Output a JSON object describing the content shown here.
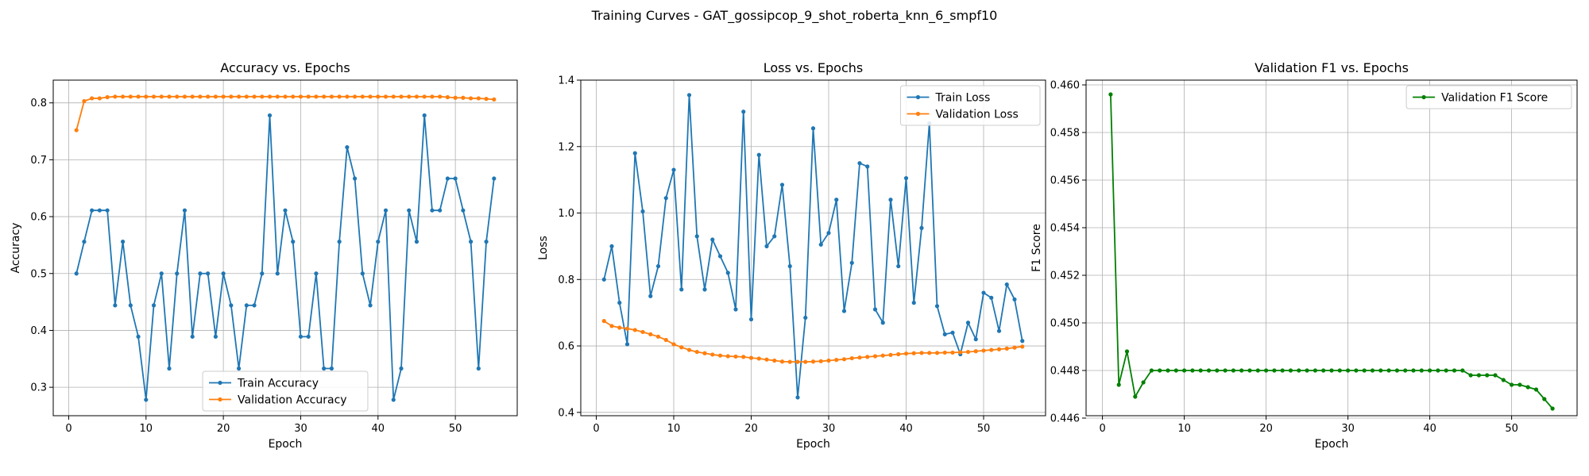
{
  "suptitle": "Training Curves - GAT_gossipcop_9_shot_roberta_knn_6_smpf10",
  "chart_data": [
    {
      "type": "line",
      "title": "Accuracy vs. Epochs",
      "xlabel": "Epoch",
      "ylabel": "Accuracy",
      "xlim": [
        -2,
        58
      ],
      "ylim": [
        0.25,
        0.84
      ],
      "xticks": [
        0,
        10,
        20,
        30,
        40,
        50
      ],
      "yticks": [
        0.3,
        0.4,
        0.5,
        0.6,
        0.7,
        0.8
      ],
      "ytick_decimals": 1,
      "grid": true,
      "legend": "bottom-center",
      "x": [
        1,
        2,
        3,
        4,
        5,
        6,
        7,
        8,
        9,
        10,
        11,
        12,
        13,
        14,
        15,
        16,
        17,
        18,
        19,
        20,
        21,
        22,
        23,
        24,
        25,
        26,
        27,
        28,
        29,
        30,
        31,
        32,
        33,
        34,
        35,
        36,
        37,
        38,
        39,
        40,
        41,
        42,
        43,
        44,
        45,
        46,
        47,
        48,
        49,
        50,
        51,
        52,
        53,
        54,
        55
      ],
      "series": [
        {
          "name": "Train Accuracy",
          "color": "#1f77b4",
          "values": [
            0.5,
            0.556,
            0.611,
            0.611,
            0.611,
            0.444,
            0.556,
            0.444,
            0.389,
            0.278,
            0.444,
            0.5,
            0.333,
            0.5,
            0.611,
            0.389,
            0.5,
            0.5,
            0.389,
            0.5,
            0.444,
            0.333,
            0.444,
            0.444,
            0.5,
            0.778,
            0.5,
            0.611,
            0.556,
            0.389,
            0.389,
            0.5,
            0.333,
            0.333,
            0.556,
            0.722,
            0.667,
            0.5,
            0.444,
            0.556,
            0.611,
            0.278,
            0.333,
            0.611,
            0.556,
            0.778,
            0.611,
            0.611,
            0.667,
            0.667,
            0.611,
            0.556,
            0.333,
            0.556,
            0.667
          ]
        },
        {
          "name": "Validation Accuracy",
          "color": "#ff7f0e",
          "values": [
            0.752,
            0.803,
            0.808,
            0.808,
            0.81,
            0.811,
            0.811,
            0.811,
            0.811,
            0.811,
            0.811,
            0.811,
            0.811,
            0.811,
            0.811,
            0.811,
            0.811,
            0.811,
            0.811,
            0.811,
            0.811,
            0.811,
            0.811,
            0.811,
            0.811,
            0.811,
            0.811,
            0.811,
            0.811,
            0.811,
            0.811,
            0.811,
            0.811,
            0.811,
            0.811,
            0.811,
            0.811,
            0.811,
            0.811,
            0.811,
            0.811,
            0.811,
            0.811,
            0.811,
            0.811,
            0.811,
            0.811,
            0.811,
            0.81,
            0.809,
            0.809,
            0.808,
            0.808,
            0.807,
            0.806
          ]
        }
      ]
    },
    {
      "type": "line",
      "title": "Loss vs. Epochs",
      "xlabel": "Epoch",
      "ylabel": "Loss",
      "xlim": [
        -2,
        58
      ],
      "ylim": [
        0.39,
        1.4
      ],
      "xticks": [
        0,
        10,
        20,
        30,
        40,
        50
      ],
      "yticks": [
        0.4,
        0.6,
        0.8,
        1.0,
        1.2,
        1.4
      ],
      "ytick_decimals": 1,
      "grid": true,
      "legend": "top-right",
      "x": [
        1,
        2,
        3,
        4,
        5,
        6,
        7,
        8,
        9,
        10,
        11,
        12,
        13,
        14,
        15,
        16,
        17,
        18,
        19,
        20,
        21,
        22,
        23,
        24,
        25,
        26,
        27,
        28,
        29,
        30,
        31,
        32,
        33,
        34,
        35,
        36,
        37,
        38,
        39,
        40,
        41,
        42,
        43,
        44,
        45,
        46,
        47,
        48,
        49,
        50,
        51,
        52,
        53,
        54,
        55
      ],
      "series": [
        {
          "name": "Train Loss",
          "color": "#1f77b4",
          "values": [
            0.8,
            0.9,
            0.73,
            0.605,
            1.18,
            1.005,
            0.75,
            0.84,
            1.045,
            1.13,
            0.77,
            1.355,
            0.93,
            0.77,
            0.92,
            0.87,
            0.82,
            0.71,
            1.305,
            0.68,
            1.175,
            0.9,
            0.93,
            1.085,
            0.84,
            0.445,
            0.685,
            1.255,
            0.905,
            0.94,
            1.04,
            0.705,
            0.85,
            1.15,
            1.14,
            0.71,
            0.67,
            1.04,
            0.84,
            1.105,
            0.73,
            0.955,
            1.27,
            0.72,
            0.635,
            0.64,
            0.575,
            0.67,
            0.62,
            0.76,
            0.745,
            0.645,
            0.785,
            0.74,
            0.615
          ]
        },
        {
          "name": "Validation Loss",
          "color": "#ff7f0e",
          "values": [
            0.675,
            0.66,
            0.655,
            0.652,
            0.648,
            0.642,
            0.635,
            0.628,
            0.618,
            0.605,
            0.596,
            0.588,
            0.582,
            0.578,
            0.574,
            0.571,
            0.569,
            0.568,
            0.567,
            0.564,
            0.562,
            0.559,
            0.556,
            0.553,
            0.552,
            0.552,
            0.552,
            0.553,
            0.554,
            0.556,
            0.558,
            0.56,
            0.563,
            0.565,
            0.567,
            0.569,
            0.571,
            0.573,
            0.575,
            0.577,
            0.578,
            0.579,
            0.579,
            0.579,
            0.58,
            0.58,
            0.581,
            0.582,
            0.584,
            0.586,
            0.588,
            0.59,
            0.592,
            0.595,
            0.598
          ]
        }
      ]
    },
    {
      "type": "line",
      "title": "Validation F1 vs. Epochs",
      "xlabel": "Epoch",
      "ylabel": "F1 Score",
      "xlim": [
        -2,
        58
      ],
      "ylim": [
        0.4461,
        0.4602
      ],
      "xticks": [
        0,
        10,
        20,
        30,
        40,
        50
      ],
      "yticks": [
        0.446,
        0.448,
        0.45,
        0.452,
        0.454,
        0.456,
        0.458,
        0.46
      ],
      "ytick_decimals": 3,
      "grid": true,
      "legend": "top-right",
      "x": [
        1,
        2,
        3,
        4,
        5,
        6,
        7,
        8,
        9,
        10,
        11,
        12,
        13,
        14,
        15,
        16,
        17,
        18,
        19,
        20,
        21,
        22,
        23,
        24,
        25,
        26,
        27,
        28,
        29,
        30,
        31,
        32,
        33,
        34,
        35,
        36,
        37,
        38,
        39,
        40,
        41,
        42,
        43,
        44,
        45,
        46,
        47,
        48,
        49,
        50,
        51,
        52,
        53,
        54,
        55
      ],
      "series": [
        {
          "name": "Validation F1 Score",
          "color": "#008000",
          "values": [
            0.4596,
            0.4474,
            0.4488,
            0.4469,
            0.4475,
            0.448,
            0.448,
            0.448,
            0.448,
            0.448,
            0.448,
            0.448,
            0.448,
            0.448,
            0.448,
            0.448,
            0.448,
            0.448,
            0.448,
            0.448,
            0.448,
            0.448,
            0.448,
            0.448,
            0.448,
            0.448,
            0.448,
            0.448,
            0.448,
            0.448,
            0.448,
            0.448,
            0.448,
            0.448,
            0.448,
            0.448,
            0.448,
            0.448,
            0.448,
            0.448,
            0.448,
            0.448,
            0.448,
            0.448,
            0.4478,
            0.4478,
            0.4478,
            0.4478,
            0.4476,
            0.4474,
            0.4474,
            0.4473,
            0.4472,
            0.4468,
            0.4464
          ]
        }
      ]
    }
  ]
}
